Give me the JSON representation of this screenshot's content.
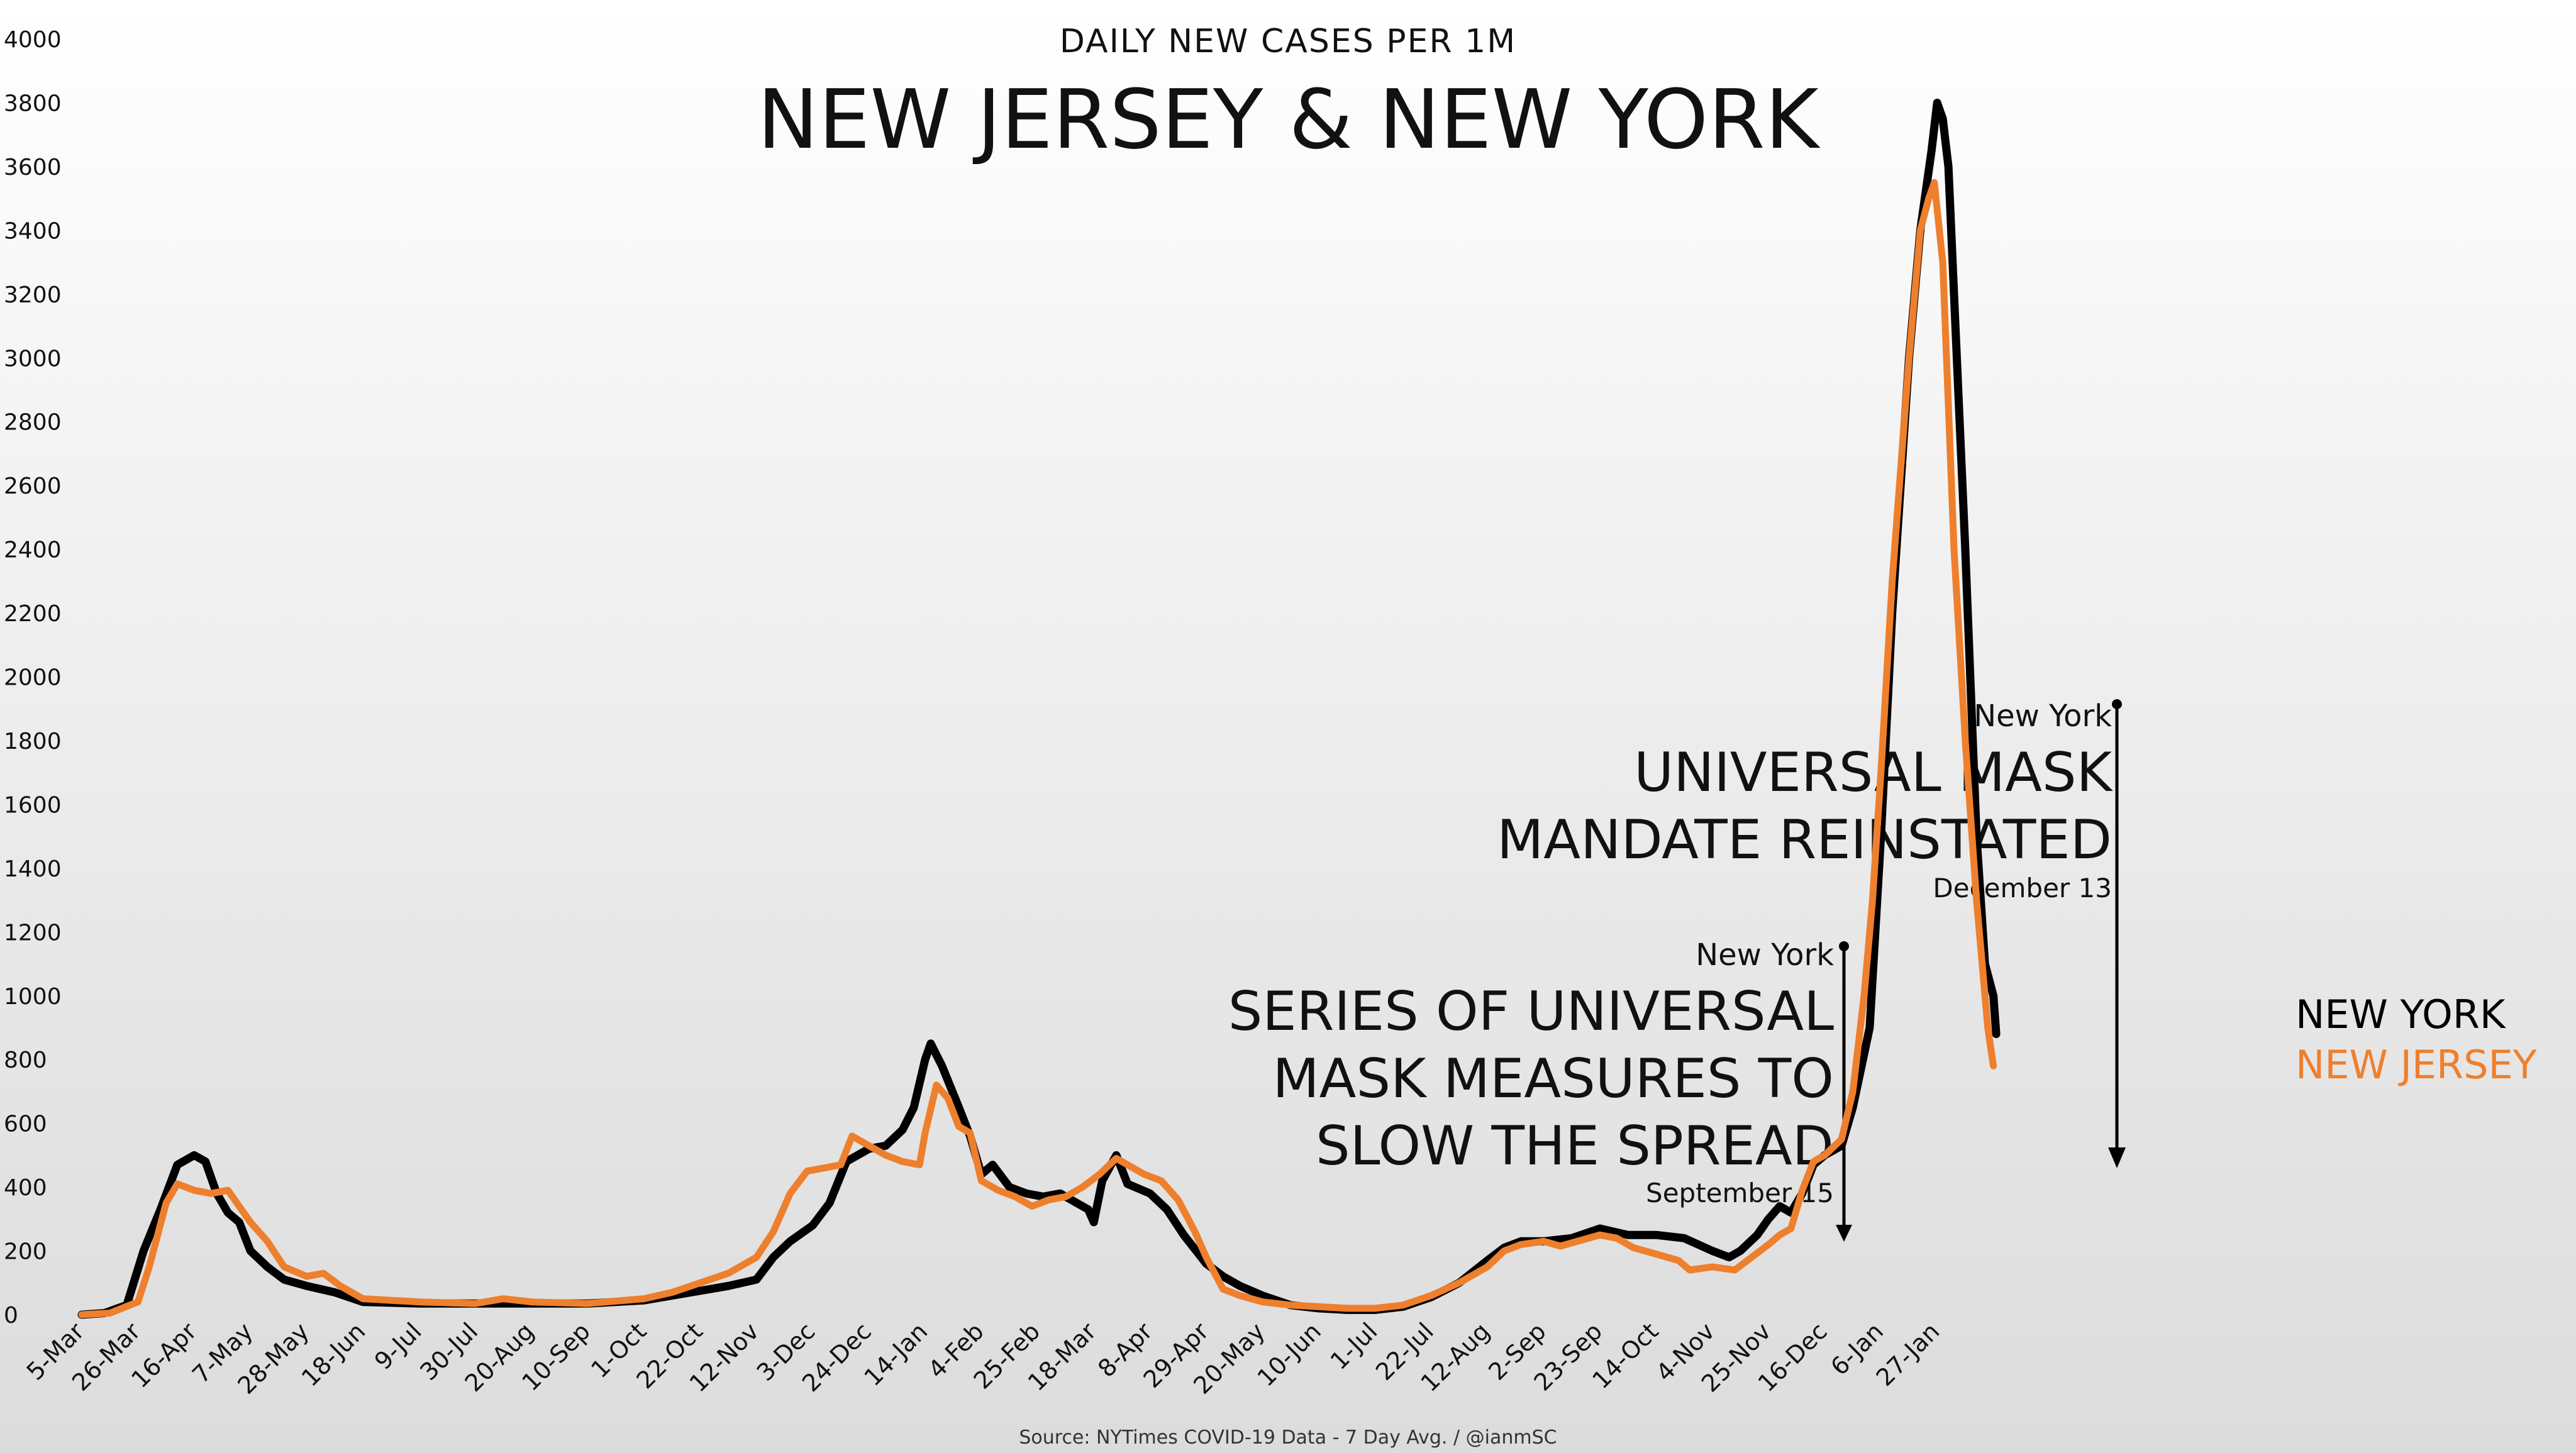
{
  "chart_data": {
    "type": "line",
    "subtitle": "DAILY NEW CASES PER 1M",
    "title": "NEW JERSEY & NEW YORK",
    "ylim": [
      0,
      4000
    ],
    "y_ticks": [
      0,
      200,
      400,
      600,
      800,
      1000,
      1200,
      1400,
      1600,
      1800,
      2000,
      2200,
      2400,
      2600,
      2800,
      3000,
      3200,
      3400,
      3600,
      3800,
      4000
    ],
    "x_ticks": [
      "5-Mar",
      "26-Mar",
      "16-Apr",
      "7-May",
      "28-May",
      "18-Jun",
      "9-Jul",
      "30-Jul",
      "20-Aug",
      "10-Sep",
      "1-Oct",
      "22-Oct",
      "12-Nov",
      "3-Dec",
      "24-Dec",
      "14-Jan",
      "4-Feb",
      "25-Feb",
      "18-Mar",
      "8-Apr",
      "29-Apr",
      "20-May",
      "10-Jun",
      "1-Jul",
      "22-Jul",
      "12-Aug",
      "2-Sep",
      "23-Sep",
      "14-Oct",
      "4-Nov",
      "25-Nov",
      "16-Dec",
      "6-Jan",
      "27-Jan"
    ],
    "grid": false,
    "source": "Source: NYTimes COVID-19 Data - 7 Day Avg. / @ianmSC",
    "series": [
      {
        "name": "NEW YORK",
        "color": "#000000",
        "points": [
          [
            0,
            0
          ],
          [
            0.4,
            5
          ],
          [
            0.8,
            30
          ],
          [
            1.1,
            200
          ],
          [
            1.4,
            330
          ],
          [
            1.7,
            470
          ],
          [
            2.0,
            500
          ],
          [
            2.2,
            480
          ],
          [
            2.4,
            380
          ],
          [
            2.6,
            320
          ],
          [
            2.8,
            290
          ],
          [
            3.0,
            200
          ],
          [
            3.3,
            150
          ],
          [
            3.6,
            110
          ],
          [
            4.0,
            90
          ],
          [
            4.5,
            70
          ],
          [
            5.0,
            40
          ],
          [
            6,
            35
          ],
          [
            7,
            35
          ],
          [
            8,
            35
          ],
          [
            9,
            35
          ],
          [
            10,
            45
          ],
          [
            10.5,
            60
          ],
          [
            11,
            75
          ],
          [
            11.5,
            90
          ],
          [
            12,
            110
          ],
          [
            12.3,
            180
          ],
          [
            12.6,
            230
          ],
          [
            13,
            280
          ],
          [
            13.3,
            350
          ],
          [
            13.6,
            480
          ],
          [
            14,
            520
          ],
          [
            14.3,
            530
          ],
          [
            14.6,
            580
          ],
          [
            14.8,
            650
          ],
          [
            15.0,
            800
          ],
          [
            15.1,
            850
          ],
          [
            15.3,
            780
          ],
          [
            15.6,
            650
          ],
          [
            15.8,
            560
          ],
          [
            16.0,
            440
          ],
          [
            16.2,
            470
          ],
          [
            16.5,
            400
          ],
          [
            16.8,
            380
          ],
          [
            17.1,
            370
          ],
          [
            17.4,
            380
          ],
          [
            17.7,
            350
          ],
          [
            17.9,
            330
          ],
          [
            18.0,
            290
          ],
          [
            18.15,
            420
          ],
          [
            18.4,
            500
          ],
          [
            18.6,
            410
          ],
          [
            19.0,
            380
          ],
          [
            19.3,
            330
          ],
          [
            19.6,
            250
          ],
          [
            20.0,
            160
          ],
          [
            20.3,
            120
          ],
          [
            20.6,
            90
          ],
          [
            21,
            60
          ],
          [
            21.5,
            30
          ],
          [
            22,
            20
          ],
          [
            22.5,
            15
          ],
          [
            23,
            15
          ],
          [
            23.5,
            25
          ],
          [
            24,
            55
          ],
          [
            24.5,
            100
          ],
          [
            25,
            170
          ],
          [
            25.3,
            210
          ],
          [
            25.6,
            230
          ],
          [
            26,
            230
          ],
          [
            26.5,
            240
          ],
          [
            27,
            270
          ],
          [
            27.5,
            250
          ],
          [
            28,
            250
          ],
          [
            28.5,
            240
          ],
          [
            29,
            200
          ],
          [
            29.3,
            180
          ],
          [
            29.5,
            200
          ],
          [
            29.8,
            250
          ],
          [
            30,
            300
          ],
          [
            30.2,
            340
          ],
          [
            30.4,
            320
          ],
          [
            30.6,
            380
          ],
          [
            30.8,
            470
          ],
          [
            31,
            500
          ],
          [
            31.3,
            530
          ],
          [
            31.5,
            650
          ],
          [
            31.8,
            900
          ],
          [
            32,
            1500
          ],
          [
            32.2,
            2200
          ],
          [
            32.5,
            3000
          ],
          [
            32.7,
            3400
          ],
          [
            32.9,
            3650
          ],
          [
            33.0,
            3800
          ],
          [
            33.1,
            3750
          ],
          [
            33.2,
            3600
          ],
          [
            33.3,
            3200
          ],
          [
            33.5,
            2400
          ],
          [
            33.7,
            1500
          ],
          [
            33.85,
            1100
          ],
          [
            34.0,
            1000
          ],
          [
            34.05,
            880
          ]
        ]
      },
      {
        "name": "NEW JERSEY",
        "color": "#ee7f2d",
        "points": [
          [
            0,
            0
          ],
          [
            0.5,
            5
          ],
          [
            1.0,
            40
          ],
          [
            1.2,
            150
          ],
          [
            1.5,
            350
          ],
          [
            1.7,
            410
          ],
          [
            2.0,
            390
          ],
          [
            2.3,
            380
          ],
          [
            2.6,
            390
          ],
          [
            2.8,
            340
          ],
          [
            3.0,
            290
          ],
          [
            3.3,
            230
          ],
          [
            3.6,
            150
          ],
          [
            4.0,
            120
          ],
          [
            4.3,
            130
          ],
          [
            4.6,
            90
          ],
          [
            5.0,
            50
          ],
          [
            6,
            40
          ],
          [
            7,
            35
          ],
          [
            7.5,
            50
          ],
          [
            8,
            40
          ],
          [
            9,
            35
          ],
          [
            10,
            50
          ],
          [
            10.5,
            70
          ],
          [
            11,
            100
          ],
          [
            11.5,
            130
          ],
          [
            12,
            180
          ],
          [
            12.3,
            260
          ],
          [
            12.6,
            380
          ],
          [
            12.9,
            450
          ],
          [
            13.2,
            460
          ],
          [
            13.5,
            470
          ],
          [
            13.7,
            560
          ],
          [
            14,
            530
          ],
          [
            14.3,
            500
          ],
          [
            14.6,
            480
          ],
          [
            14.9,
            470
          ],
          [
            15.0,
            570
          ],
          [
            15.2,
            720
          ],
          [
            15.4,
            680
          ],
          [
            15.6,
            590
          ],
          [
            15.8,
            570
          ],
          [
            16.0,
            420
          ],
          [
            16.3,
            390
          ],
          [
            16.6,
            370
          ],
          [
            16.9,
            340
          ],
          [
            17.2,
            360
          ],
          [
            17.5,
            370
          ],
          [
            17.8,
            400
          ],
          [
            18.1,
            440
          ],
          [
            18.4,
            490
          ],
          [
            18.6,
            470
          ],
          [
            18.9,
            440
          ],
          [
            19.2,
            420
          ],
          [
            19.5,
            360
          ],
          [
            19.8,
            260
          ],
          [
            20.0,
            180
          ],
          [
            20.3,
            80
          ],
          [
            20.6,
            60
          ],
          [
            21,
            40
          ],
          [
            21.5,
            30
          ],
          [
            22,
            25
          ],
          [
            22.5,
            20
          ],
          [
            23,
            20
          ],
          [
            23.5,
            30
          ],
          [
            24,
            60
          ],
          [
            24.5,
            100
          ],
          [
            25,
            150
          ],
          [
            25.3,
            200
          ],
          [
            25.6,
            220
          ],
          [
            26,
            230
          ],
          [
            26.3,
            215
          ],
          [
            26.6,
            230
          ],
          [
            27,
            250
          ],
          [
            27.3,
            240
          ],
          [
            27.6,
            210
          ],
          [
            28,
            190
          ],
          [
            28.4,
            170
          ],
          [
            28.6,
            140
          ],
          [
            29,
            150
          ],
          [
            29.4,
            140
          ],
          [
            29.7,
            180
          ],
          [
            30,
            220
          ],
          [
            30.2,
            250
          ],
          [
            30.4,
            270
          ],
          [
            30.6,
            390
          ],
          [
            30.8,
            480
          ],
          [
            31,
            500
          ],
          [
            31.3,
            550
          ],
          [
            31.5,
            700
          ],
          [
            31.7,
            1000
          ],
          [
            31.85,
            1300
          ],
          [
            32.0,
            1700
          ],
          [
            32.2,
            2300
          ],
          [
            32.5,
            3000
          ],
          [
            32.7,
            3400
          ],
          [
            32.85,
            3500
          ],
          [
            32.95,
            3550
          ],
          [
            33.1,
            3300
          ],
          [
            33.3,
            2400
          ],
          [
            33.5,
            1800
          ],
          [
            33.7,
            1300
          ],
          [
            33.9,
            900
          ],
          [
            34.0,
            780
          ]
        ]
      }
    ]
  },
  "annotations": [
    {
      "location": "New York",
      "line1": "UNIVERSAL MASK",
      "line2": "MANDATE REINSTATED",
      "line3": "",
      "date": "December 13"
    },
    {
      "location": "New York",
      "line1": "SERIES OF UNIVERSAL",
      "line2": "MASK MEASURES TO",
      "line3": "SLOW THE SPREAD",
      "date": "September 15"
    }
  ]
}
